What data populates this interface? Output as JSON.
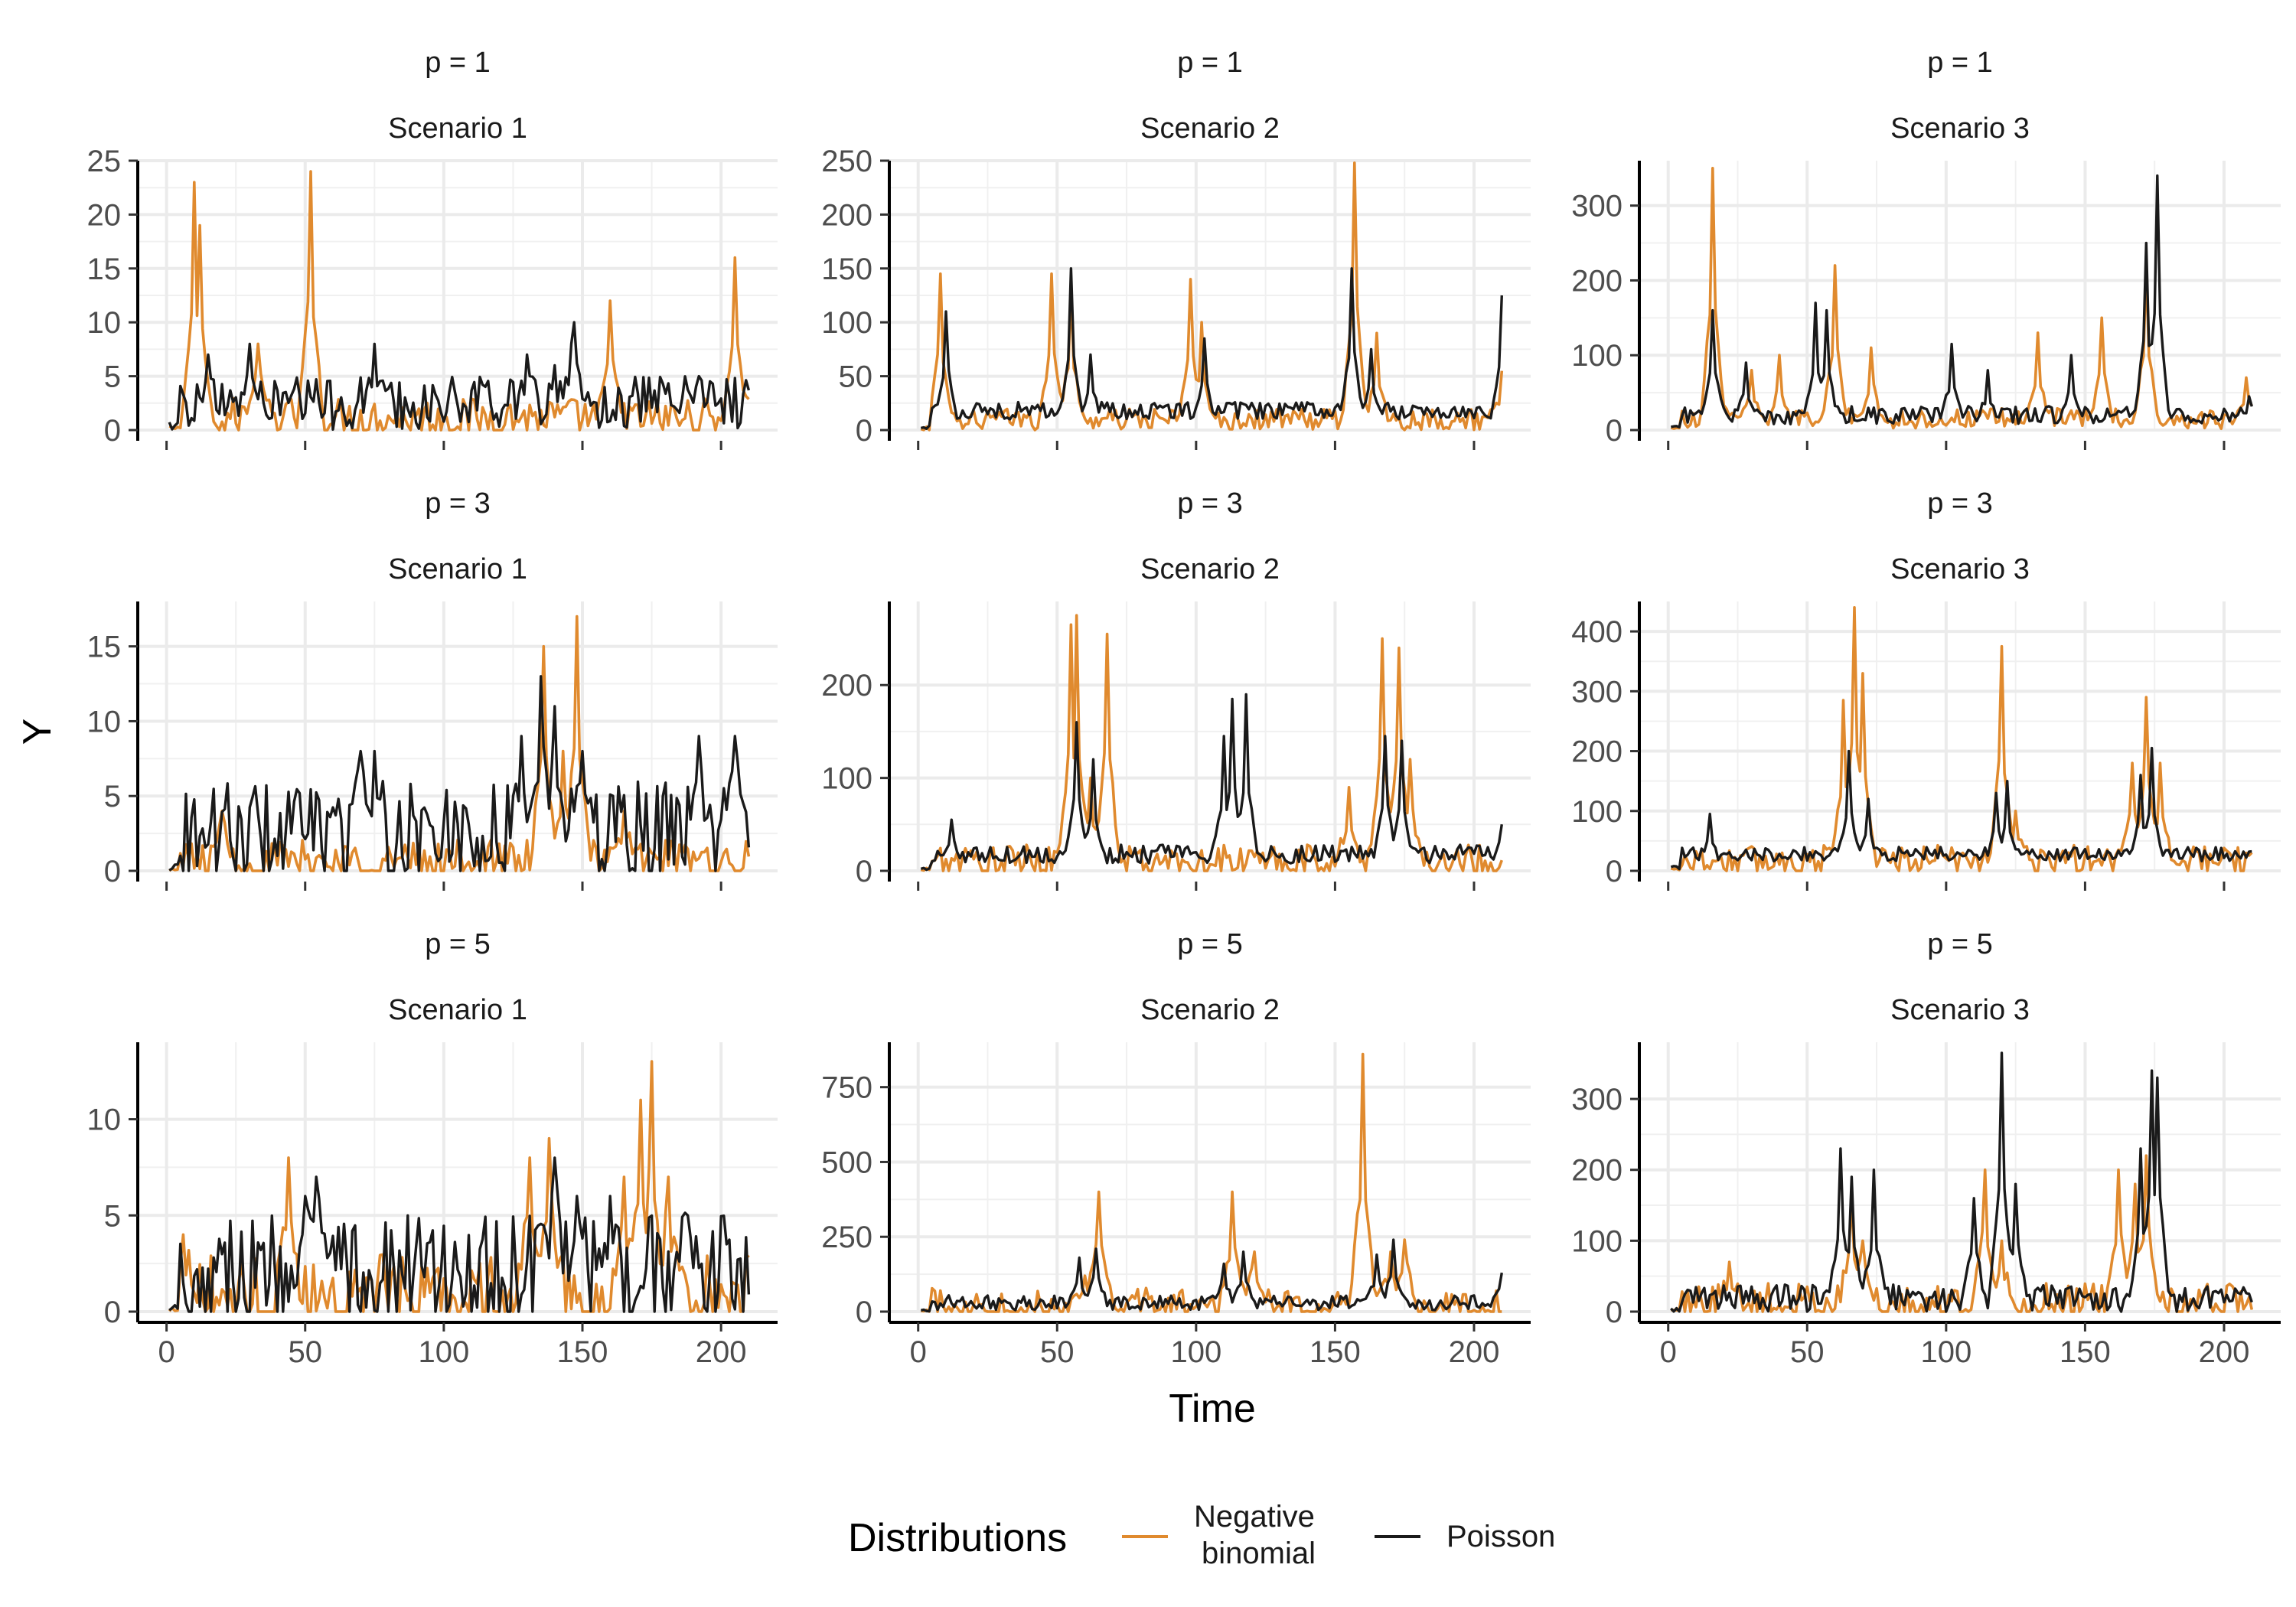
{
  "axis": {
    "xlabel": "Time",
    "ylabel": "Y"
  },
  "legend": {
    "title": "Distributions",
    "items": [
      {
        "label_line1": "Negative",
        "label_line2": "binomial",
        "color": "#E08A2E"
      },
      {
        "label_line1": "Poisson",
        "label_line2": "",
        "color": "#1a1a1a"
      }
    ],
    "position": "bottom"
  },
  "chart_data": [
    {
      "type": "line",
      "strip_top": "p = 1",
      "strip_bottom": "Scenario 1",
      "xlim": [
        0,
        210
      ],
      "xticks": [
        0,
        50,
        100,
        150,
        200
      ],
      "ylim": [
        0,
        25
      ],
      "yticks": [
        0,
        5,
        10,
        15,
        20,
        25
      ],
      "series": [
        {
          "name": "Negative binomial",
          "base": 1.2,
          "noise": 1.8,
          "peaks": [
            [
              10,
              23
            ],
            [
              12,
              19
            ],
            [
              13,
              9
            ],
            [
              52,
              24
            ],
            [
              33,
              8
            ],
            [
              160,
              12
            ],
            [
              205,
              16
            ],
            [
              207,
              6
            ]
          ]
        },
        {
          "name": "Poisson",
          "base": 2.5,
          "noise": 2.5,
          "peaks": [
            [
              15,
              7
            ],
            [
              30,
              8
            ],
            [
              75,
              8
            ],
            [
              130,
              7
            ],
            [
              140,
              6
            ],
            [
              146,
              8
            ],
            [
              147,
              10
            ],
            [
              192,
              5
            ]
          ]
        }
      ]
    },
    {
      "type": "line",
      "strip_top": "p = 1",
      "strip_bottom": "Scenario 2",
      "xlim": [
        0,
        210
      ],
      "xticks": [
        0,
        50,
        100,
        150,
        200
      ],
      "ylim": [
        0,
        250
      ],
      "yticks": [
        0,
        50,
        100,
        150,
        200,
        250
      ],
      "series": [
        {
          "name": "Negative binomial",
          "base": 10,
          "noise": 10,
          "peaks": [
            [
              8,
              145
            ],
            [
              48,
              145
            ],
            [
              55,
              130
            ],
            [
              98,
              140
            ],
            [
              102,
              100
            ],
            [
              157,
              248
            ],
            [
              165,
              90
            ],
            [
              210,
              55
            ]
          ]
        },
        {
          "name": "Poisson",
          "base": 18,
          "noise": 8,
          "peaks": [
            [
              10,
              110
            ],
            [
              55,
              150
            ],
            [
              62,
              70
            ],
            [
              103,
              85
            ],
            [
              156,
              150
            ],
            [
              163,
              75
            ],
            [
              210,
              125
            ]
          ]
        }
      ]
    },
    {
      "type": "line",
      "strip_top": "p = 1",
      "strip_bottom": "Scenario 3",
      "xlim": [
        0,
        210
      ],
      "xticks": [
        0,
        50,
        100,
        150,
        200
      ],
      "ylim": [
        0,
        360
      ],
      "yticks": [
        0,
        100,
        200,
        300
      ],
      "series": [
        {
          "name": "Negative binomial",
          "base": 15,
          "noise": 14,
          "peaks": [
            [
              16,
              350
            ],
            [
              30,
              80
            ],
            [
              40,
              100
            ],
            [
              60,
              220
            ],
            [
              73,
              110
            ],
            [
              133,
              130
            ],
            [
              156,
              150
            ],
            [
              172,
              220
            ],
            [
              208,
              70
            ]
          ]
        },
        {
          "name": "Poisson",
          "base": 20,
          "noise": 12,
          "peaks": [
            [
              16,
              160
            ],
            [
              28,
              90
            ],
            [
              53,
              170
            ],
            [
              57,
              160
            ],
            [
              102,
              115
            ],
            [
              115,
              80
            ],
            [
              145,
              100
            ],
            [
              172,
              250
            ],
            [
              176,
              340
            ],
            [
              209,
              45
            ]
          ]
        }
      ]
    },
    {
      "type": "line",
      "strip_top": "p = 3",
      "strip_bottom": "Scenario 1",
      "xlim": [
        0,
        210
      ],
      "xticks": [
        0,
        50,
        100,
        150,
        200
      ],
      "ylim": [
        0,
        18
      ],
      "yticks": [
        0,
        5,
        10,
        15
      ],
      "series": [
        {
          "name": "Negative binomial",
          "base": 0.6,
          "noise": 1.5,
          "peaks": [
            [
              20,
              4
            ],
            [
              136,
              15
            ],
            [
              148,
              17
            ],
            [
              143,
              8
            ],
            [
              165,
              4
            ]
          ]
        },
        {
          "name": "Poisson",
          "base": 2.5,
          "noise": 3.5,
          "peaks": [
            [
              70,
              8
            ],
            [
              75,
              8
            ],
            [
              128,
              9
            ],
            [
              135,
              13
            ],
            [
              140,
              11
            ],
            [
              150,
              8
            ],
            [
              192,
              9
            ],
            [
              205,
              9
            ]
          ]
        }
      ]
    },
    {
      "type": "line",
      "strip_top": "p = 3",
      "strip_bottom": "Scenario 2",
      "xlim": [
        0,
        210
      ],
      "xticks": [
        0,
        50,
        100,
        150,
        200
      ],
      "ylim": [
        0,
        290
      ],
      "yticks": [
        0,
        100,
        200
      ],
      "series": [
        {
          "name": "Negative binomial",
          "base": 10,
          "noise": 18,
          "peaks": [
            [
              55,
              265
            ],
            [
              57,
              275
            ],
            [
              68,
              255
            ],
            [
              62,
              100
            ],
            [
              155,
              90
            ],
            [
              167,
              250
            ],
            [
              173,
              240
            ],
            [
              177,
              120
            ]
          ]
        },
        {
          "name": "Poisson",
          "base": 18,
          "noise": 10,
          "peaks": [
            [
              12,
              55
            ],
            [
              57,
              160
            ],
            [
              63,
              120
            ],
            [
              110,
              145
            ],
            [
              113,
              185
            ],
            [
              118,
              190
            ],
            [
              168,
              145
            ],
            [
              174,
              140
            ],
            [
              210,
              50
            ]
          ]
        }
      ]
    },
    {
      "type": "line",
      "strip_top": "p = 3",
      "strip_bottom": "Scenario 3",
      "xlim": [
        0,
        210
      ],
      "xticks": [
        0,
        50,
        100,
        150,
        200
      ],
      "ylim": [
        0,
        450
      ],
      "yticks": [
        0,
        100,
        200,
        300,
        400
      ],
      "series": [
        {
          "name": "Negative binomial",
          "base": 18,
          "noise": 25,
          "peaks": [
            [
              63,
              285
            ],
            [
              67,
              440
            ],
            [
              70,
              330
            ],
            [
              120,
              375
            ],
            [
              125,
              100
            ],
            [
              167,
              180
            ],
            [
              172,
              290
            ],
            [
              177,
              180
            ]
          ]
        },
        {
          "name": "Poisson",
          "base": 28,
          "noise": 12,
          "peaks": [
            [
              15,
              95
            ],
            [
              65,
              200
            ],
            [
              72,
              120
            ],
            [
              118,
              130
            ],
            [
              122,
              150
            ],
            [
              170,
              160
            ],
            [
              174,
              205
            ]
          ]
        }
      ]
    },
    {
      "type": "line",
      "strip_top": "p = 5",
      "strip_bottom": "Scenario 1",
      "xlim": [
        0,
        210
      ],
      "xticks": [
        0,
        50,
        100,
        150,
        200
      ],
      "ylim": [
        0,
        14
      ],
      "yticks": [
        0,
        5,
        10
      ],
      "series": [
        {
          "name": "Negative binomial",
          "base": 0.8,
          "noise": 2.2,
          "peaks": [
            [
              6,
              4
            ],
            [
              44,
              8
            ],
            [
              131,
              8
            ],
            [
              138,
              9
            ],
            [
              165,
              7
            ],
            [
              171,
              11
            ],
            [
              175,
              13
            ],
            [
              181,
              7
            ]
          ]
        },
        {
          "name": "Poisson",
          "base": 2.0,
          "noise": 3.0,
          "peaks": [
            [
              50,
              6
            ],
            [
              54,
              7
            ],
            [
              140,
              8
            ],
            [
              148,
              6
            ],
            [
              160,
              6
            ],
            [
              188,
              5
            ]
          ]
        }
      ]
    },
    {
      "type": "line",
      "strip_top": "p = 5",
      "strip_bottom": "Scenario 2",
      "xlim": [
        0,
        210
      ],
      "xticks": [
        0,
        50,
        100,
        150,
        200
      ],
      "ylim": [
        0,
        900
      ],
      "yticks": [
        0,
        250,
        500,
        750
      ],
      "series": [
        {
          "name": "Negative binomial",
          "base": 20,
          "noise": 60,
          "peaks": [
            [
              65,
              400
            ],
            [
              60,
              120
            ],
            [
              113,
              400
            ],
            [
              121,
              200
            ],
            [
              158,
              120
            ],
            [
              160,
              860
            ],
            [
              170,
              200
            ],
            [
              175,
              240
            ]
          ]
        },
        {
          "name": "Poisson",
          "base": 30,
          "noise": 25,
          "peaks": [
            [
              58,
              180
            ],
            [
              64,
              210
            ],
            [
              110,
              160
            ],
            [
              117,
              200
            ],
            [
              165,
              190
            ],
            [
              171,
              240
            ],
            [
              210,
              130
            ]
          ]
        }
      ]
    },
    {
      "type": "line",
      "strip_top": "p = 5",
      "strip_bottom": "Scenario 3",
      "xlim": [
        0,
        210
      ],
      "xticks": [
        0,
        50,
        100,
        150,
        200
      ],
      "ylim": [
        0,
        380
      ],
      "yticks": [
        0,
        100,
        200,
        300
      ],
      "series": [
        {
          "name": "Negative binomial",
          "base": 10,
          "noise": 30,
          "peaks": [
            [
              22,
              70
            ],
            [
              66,
              160
            ],
            [
              70,
              100
            ],
            [
              114,
              200
            ],
            [
              120,
              100
            ],
            [
              162,
              200
            ],
            [
              168,
              180
            ],
            [
              172,
              220
            ]
          ]
        },
        {
          "name": "Poisson",
          "base": 18,
          "noise": 20,
          "peaks": [
            [
              62,
              230
            ],
            [
              66,
              190
            ],
            [
              74,
              200
            ],
            [
              110,
              160
            ],
            [
              120,
              365
            ],
            [
              125,
              180
            ],
            [
              170,
              230
            ],
            [
              174,
              340
            ],
            [
              176,
              330
            ],
            [
              209,
              25
            ]
          ]
        }
      ]
    }
  ]
}
